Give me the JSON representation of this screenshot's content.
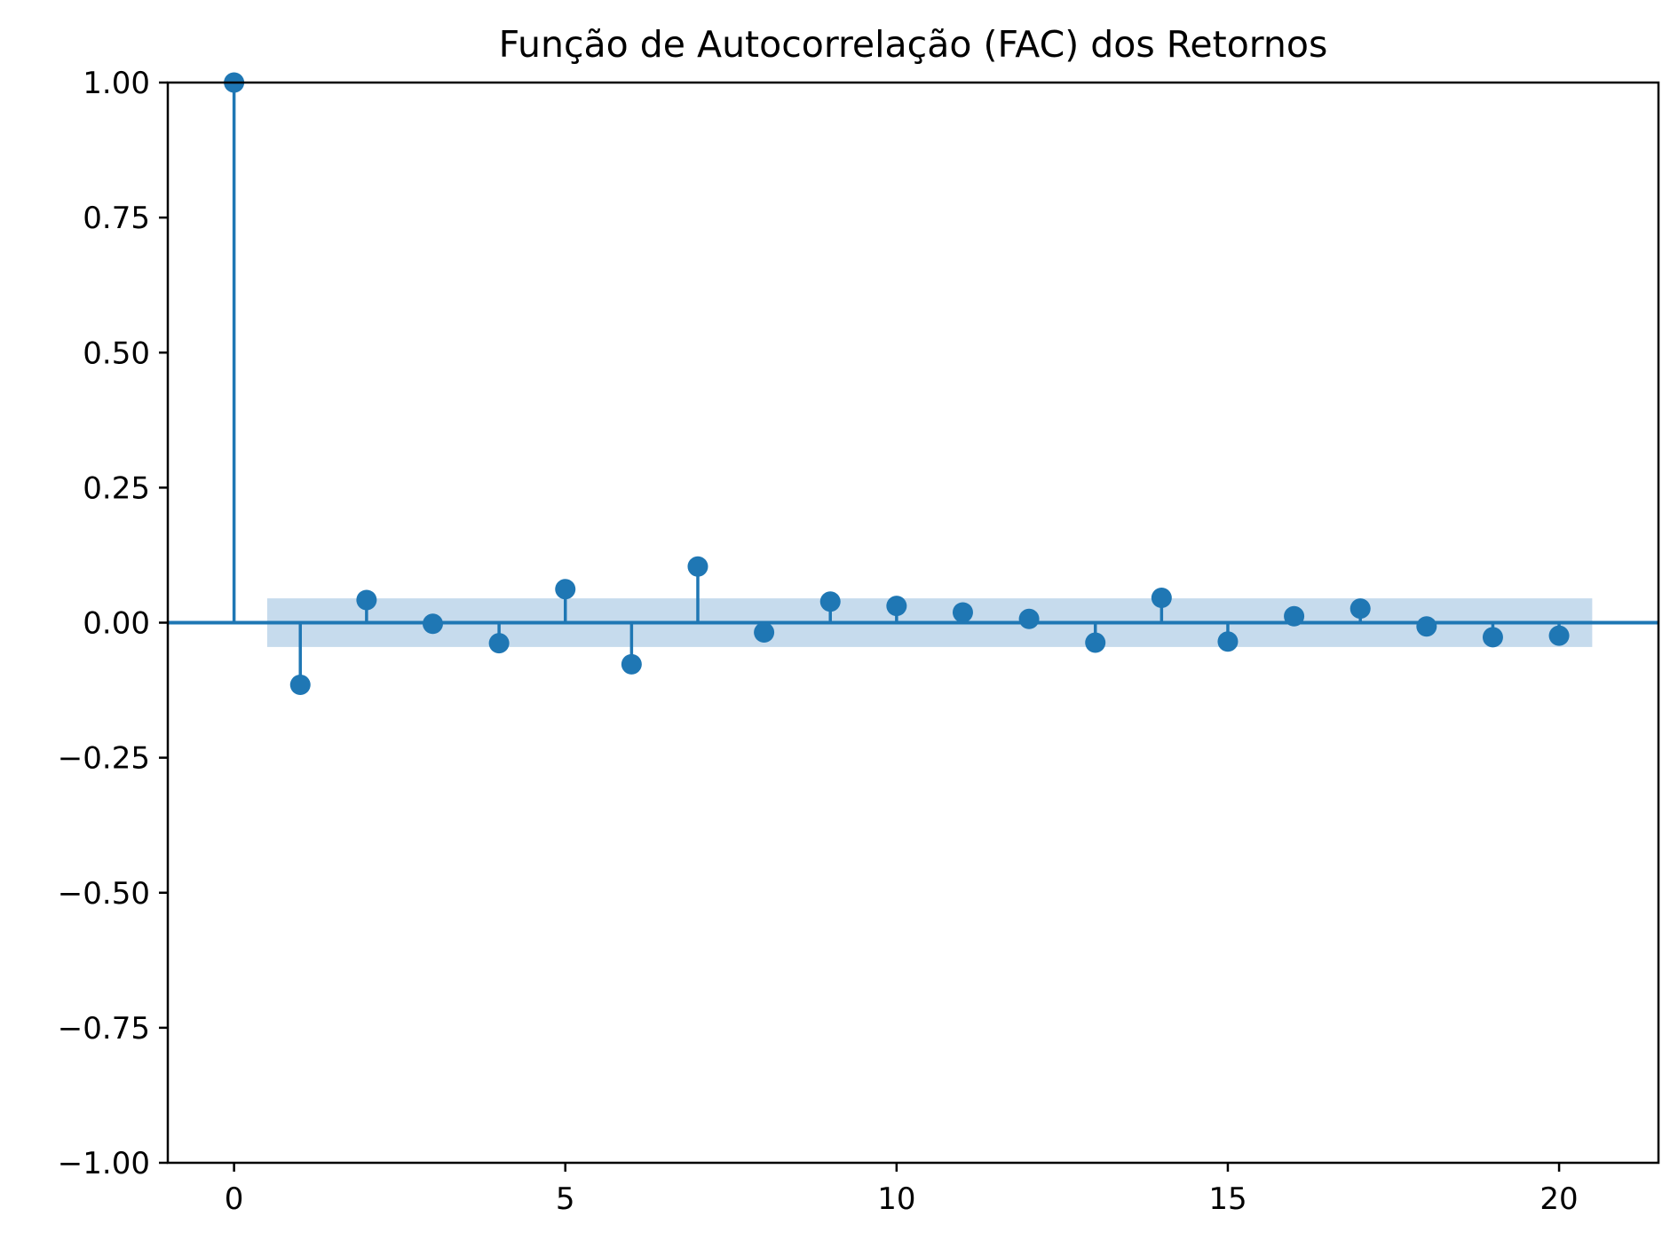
{
  "chart_data": {
    "type": "stem",
    "title": "Função de Autocorrelação (FAC) dos Retornos",
    "xlabel": "",
    "ylabel": "",
    "xlim": [
      -1,
      21.5
    ],
    "ylim": [
      -1.0,
      1.0
    ],
    "x_ticks": [
      0,
      5,
      10,
      15,
      20
    ],
    "x_tick_labels": [
      "0",
      "5",
      "10",
      "15",
      "20"
    ],
    "y_ticks": [
      1.0,
      0.75,
      0.5,
      0.25,
      0.0,
      -0.25,
      -0.5,
      -0.75,
      -1.0
    ],
    "y_tick_labels": [
      "1.00",
      "0.75",
      "0.50",
      "0.25",
      "0.00",
      "−0.25",
      "−0.50",
      "−0.75",
      "−1.00"
    ],
    "lags": [
      0,
      1,
      2,
      3,
      4,
      5,
      6,
      7,
      8,
      9,
      10,
      11,
      12,
      13,
      14,
      15,
      16,
      17,
      18,
      19,
      20
    ],
    "values": [
      1.0,
      -0.115,
      0.042,
      -0.002,
      -0.038,
      0.062,
      -0.077,
      0.104,
      -0.018,
      0.039,
      0.031,
      0.019,
      0.007,
      -0.037,
      0.046,
      -0.035,
      0.012,
      0.026,
      -0.007,
      -0.027,
      -0.024
    ],
    "confidence_band": {
      "x_range": [
        0.5,
        20.5
      ],
      "lower": -0.045,
      "upper": 0.045
    },
    "grid": false,
    "legend": "none",
    "colors": {
      "series": "#1f77b4",
      "band": "#c6dbed",
      "axes": "#000000"
    }
  }
}
